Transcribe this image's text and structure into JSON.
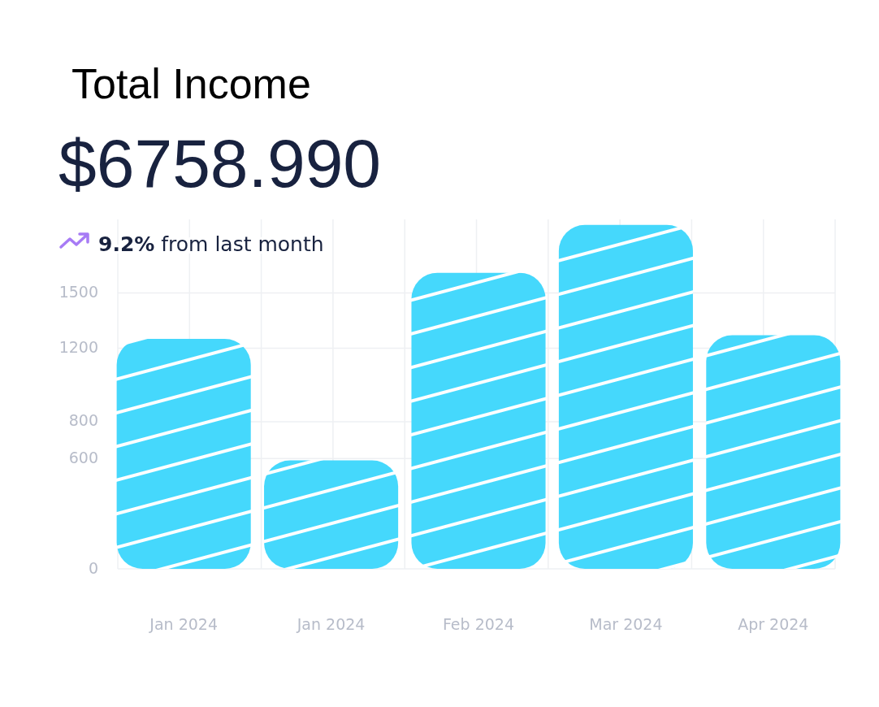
{
  "chart_data": {
    "type": "bar",
    "title": "Total Income",
    "subtitle": "$6758.990",
    "annotations": [
      "9.2%",
      "from last month"
    ],
    "categories": [
      "Jan 2024",
      "Jan 2024",
      "Feb 2024",
      "Mar 2024",
      "Apr 2024"
    ],
    "values": [
      1250,
      590,
      1610,
      1870,
      1270
    ],
    "color": "#45d8fc",
    "ylim": [
      0,
      1900
    ],
    "yticks": [
      0,
      600,
      800,
      1200,
      1500
    ],
    "grid": true
  }
}
